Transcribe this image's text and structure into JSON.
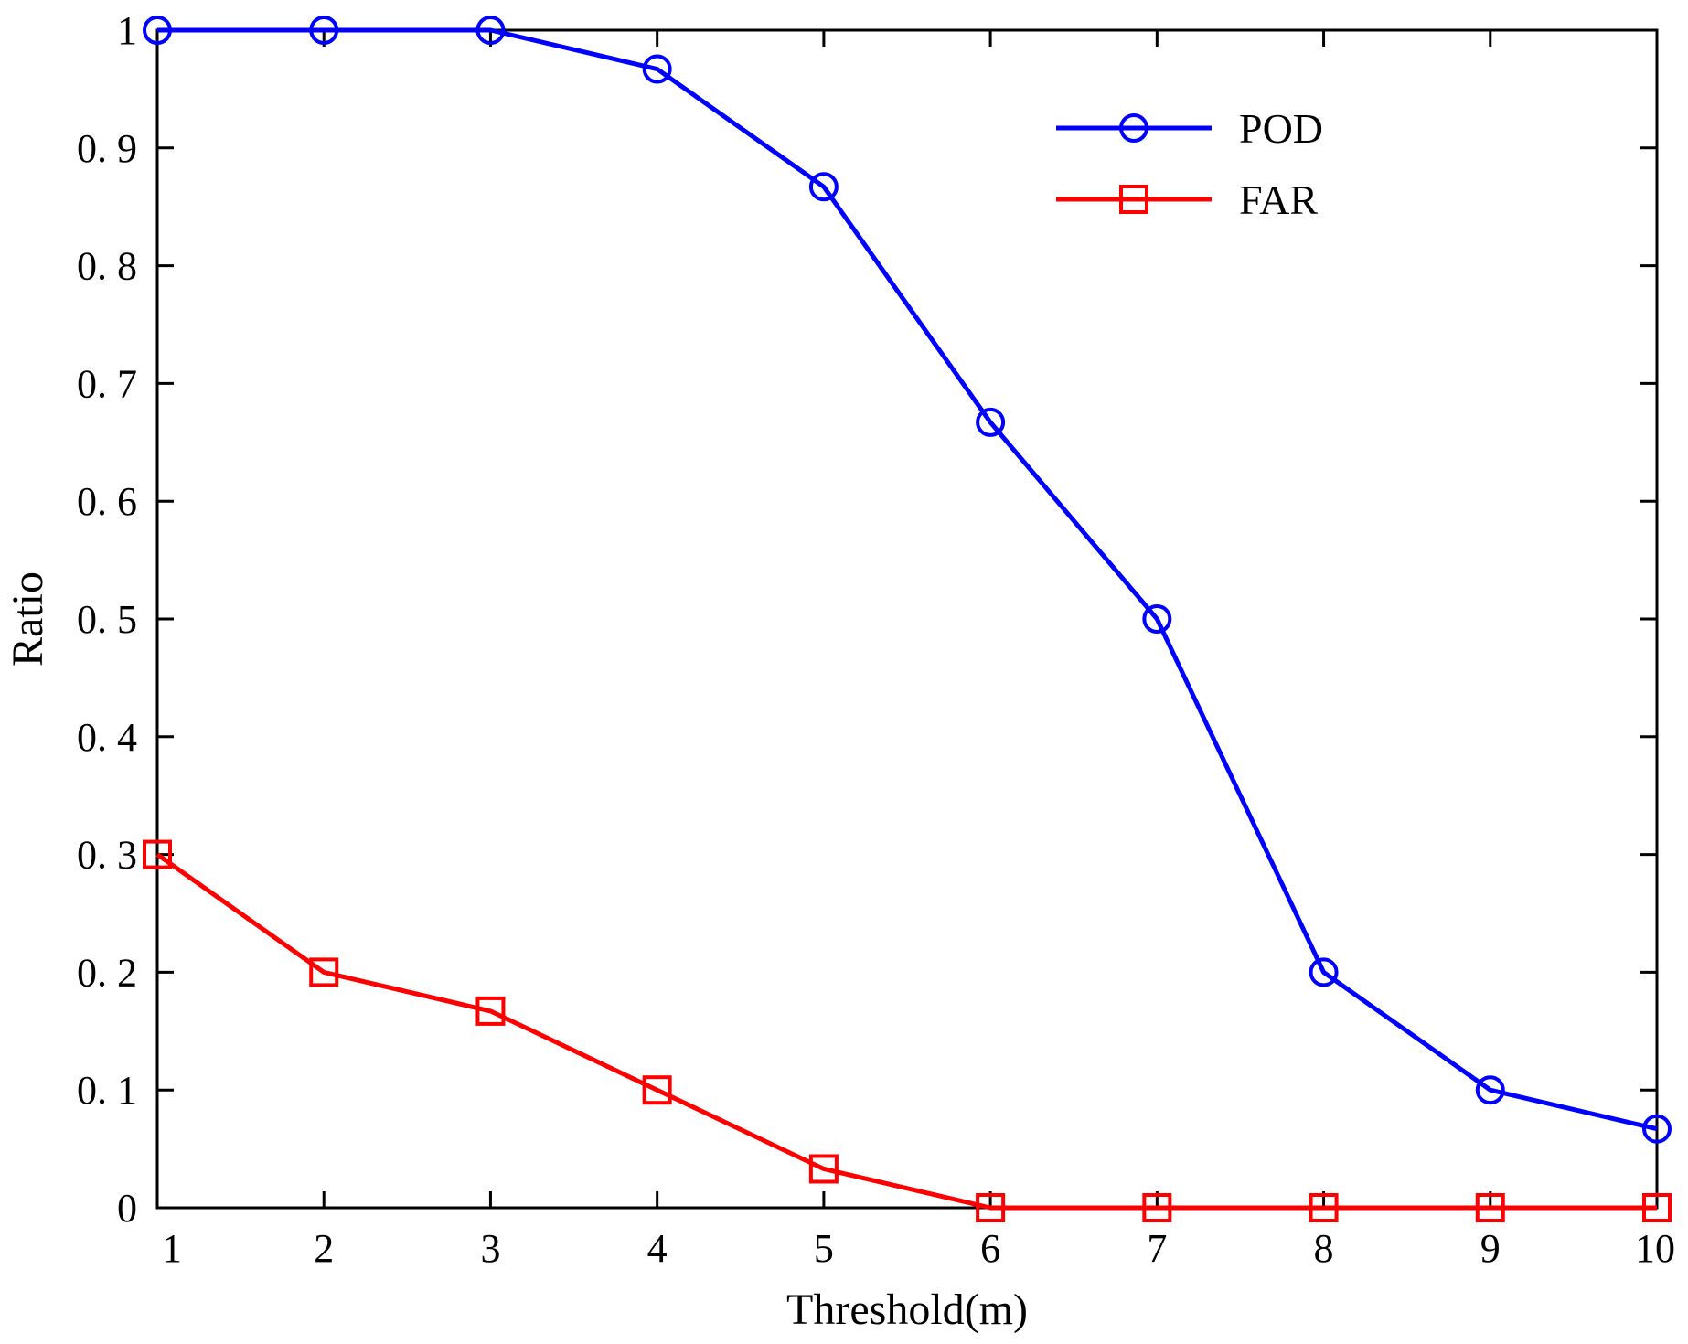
{
  "chart_data": {
    "type": "line",
    "title": "",
    "xlabel": "Threshold(m)",
    "ylabel": "Ratio",
    "x": [
      1,
      2,
      3,
      4,
      5,
      6,
      7,
      8,
      9,
      10
    ],
    "xlim": [
      1,
      10
    ],
    "ylim": [
      0,
      1
    ],
    "x_ticks": [
      "1",
      "2",
      "3",
      "4",
      "5",
      "6",
      "7",
      "8",
      "9",
      "10"
    ],
    "y_ticks": [
      "0",
      "0. 1",
      "0. 2",
      "0. 3",
      "0. 4",
      "0. 5",
      "0. 6",
      "0. 7",
      "0. 8",
      "0. 9",
      "1"
    ],
    "y_tick_values": [
      0,
      0.1,
      0.2,
      0.3,
      0.4,
      0.5,
      0.6,
      0.7,
      0.8,
      0.9,
      1.0
    ],
    "grid": false,
    "legend_position": "top-right",
    "series": [
      {
        "name": "POD",
        "color": "#0000ff",
        "marker": "circle",
        "values": [
          1.0,
          1.0,
          1.0,
          0.967,
          0.867,
          0.667,
          0.5,
          0.2,
          0.1,
          0.067
        ]
      },
      {
        "name": "FAR",
        "color": "#ff0000",
        "marker": "square",
        "values": [
          0.3,
          0.2,
          0.167,
          0.1,
          0.033,
          0.0,
          0.0,
          0.0,
          0.0,
          0.0
        ]
      }
    ]
  }
}
